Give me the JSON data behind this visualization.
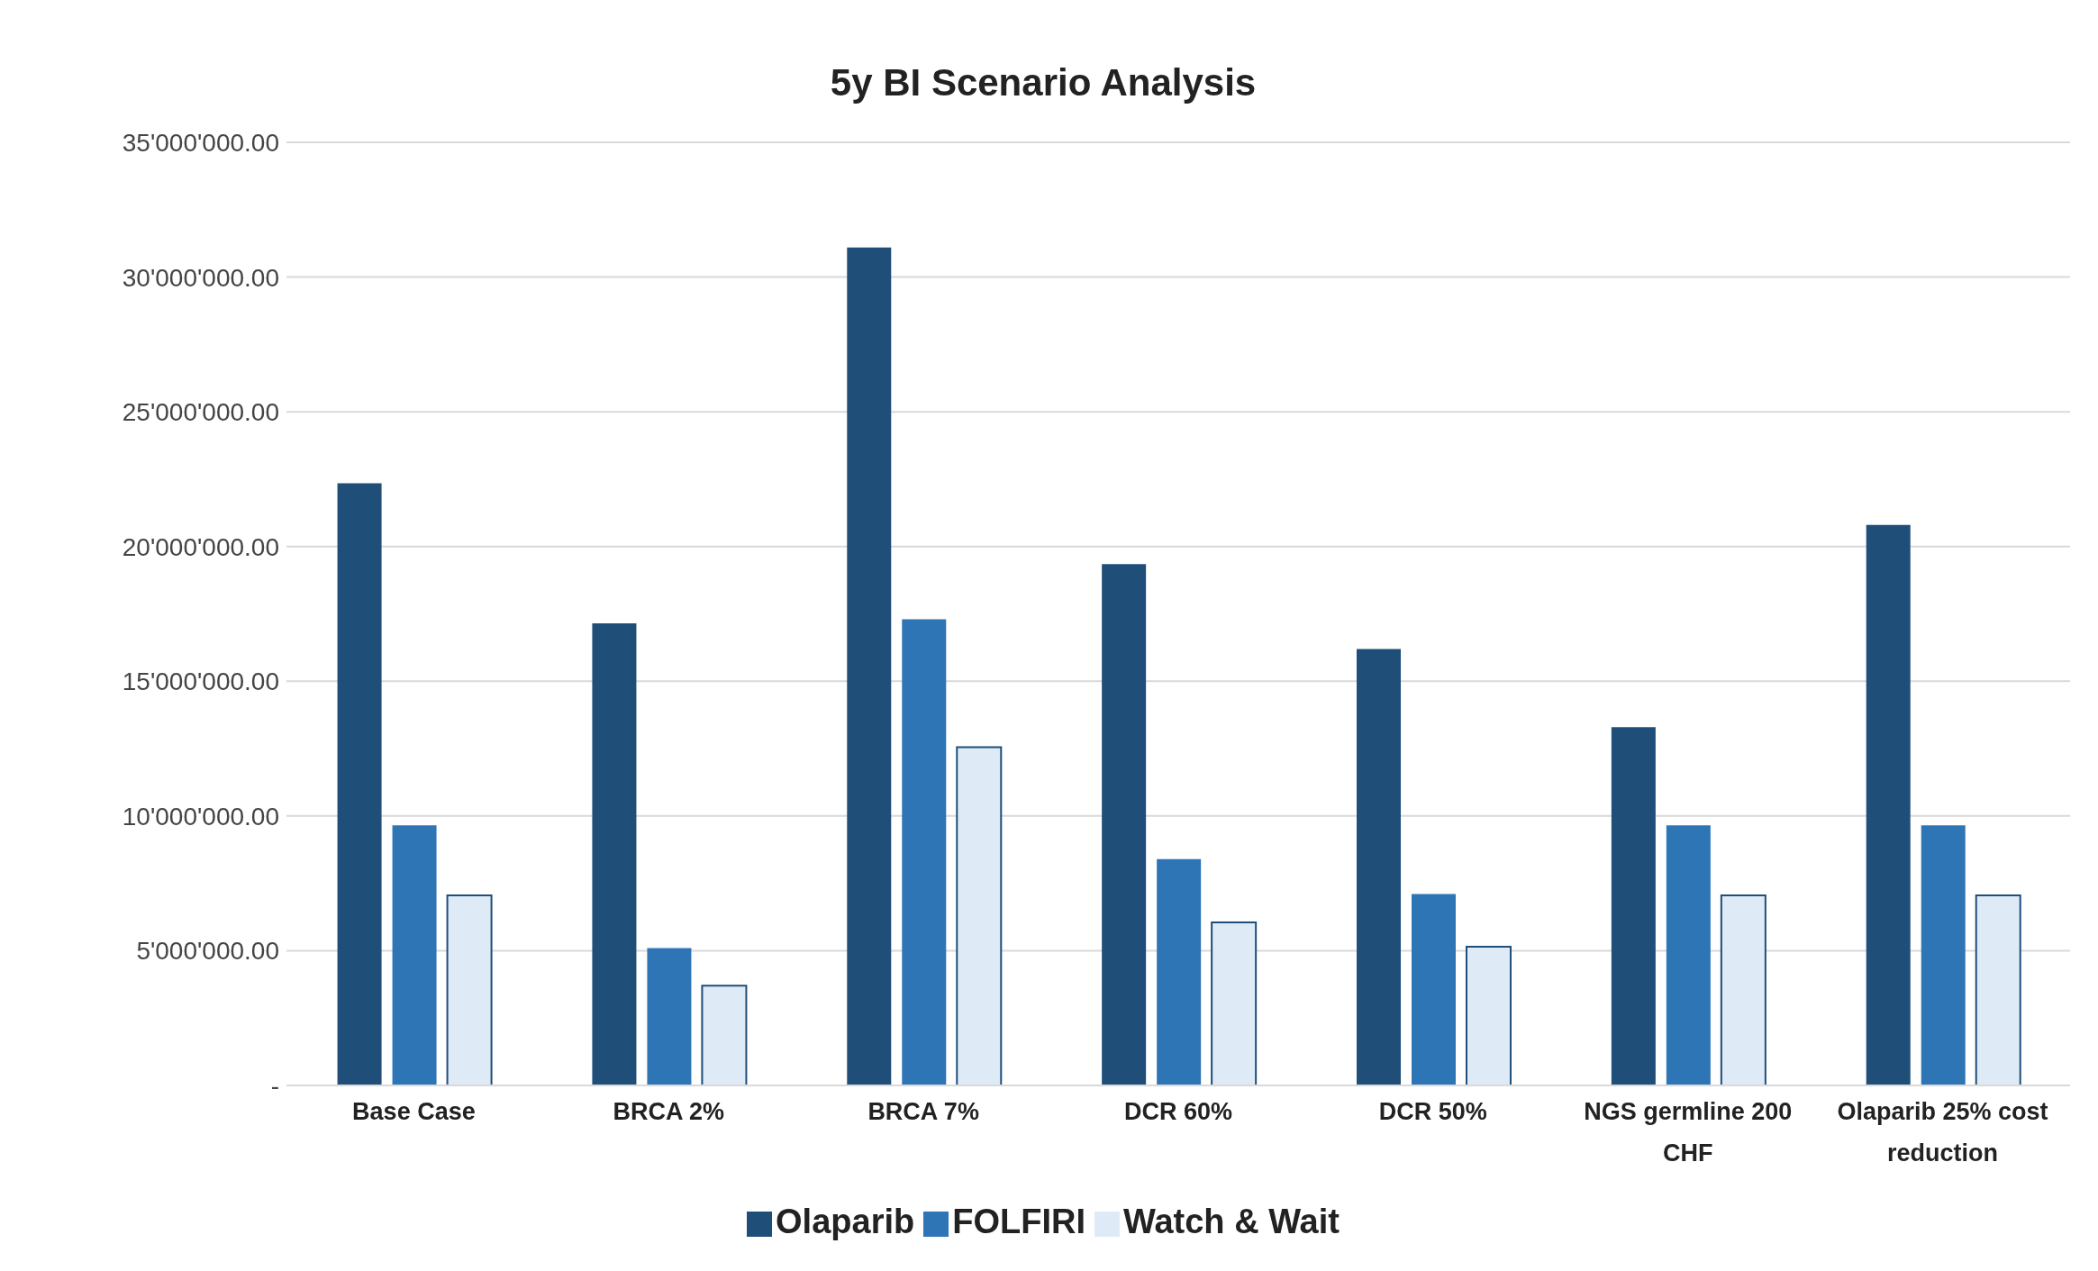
{
  "chart_data": {
    "type": "bar",
    "title": "5y BI Scenario Analysis",
    "categories": [
      "Base Case",
      "BRCA 2%",
      "BRCA 7%",
      "DCR 60%",
      "DCR 50%",
      "NGS germline 200 CHF",
      "Olaparib 25% cost reduction"
    ],
    "series": [
      {
        "name": "Olaparib",
        "color": "#1f4e79",
        "values": [
          22350000,
          17150000,
          31100000,
          19350000,
          16200000,
          13300000,
          20800000
        ]
      },
      {
        "name": "FOLFIRI",
        "color": "#2e75b6",
        "values": [
          9650000,
          5100000,
          17300000,
          8400000,
          7100000,
          9650000,
          9650000
        ]
      },
      {
        "name": "Watch & Wait",
        "color": "#deebf7",
        "values": [
          7050000,
          3700000,
          12550000,
          6050000,
          5150000,
          7050000,
          7050000
        ]
      }
    ],
    "ylim": [
      0,
      35000000
    ],
    "yticks": [
      {
        "value": 0,
        "label": "-"
      },
      {
        "value": 5000000,
        "label": "5'000'000.00"
      },
      {
        "value": 10000000,
        "label": "10'000'000.00"
      },
      {
        "value": 15000000,
        "label": "15'000'000.00"
      },
      {
        "value": 20000000,
        "label": "20'000'000.00"
      },
      {
        "value": 25000000,
        "label": "25'000'000.00"
      },
      {
        "value": 30000000,
        "label": "30'000'000.00"
      },
      {
        "value": 35000000,
        "label": "35'000'000.00"
      }
    ],
    "grid": "y",
    "legend": "bottom"
  }
}
